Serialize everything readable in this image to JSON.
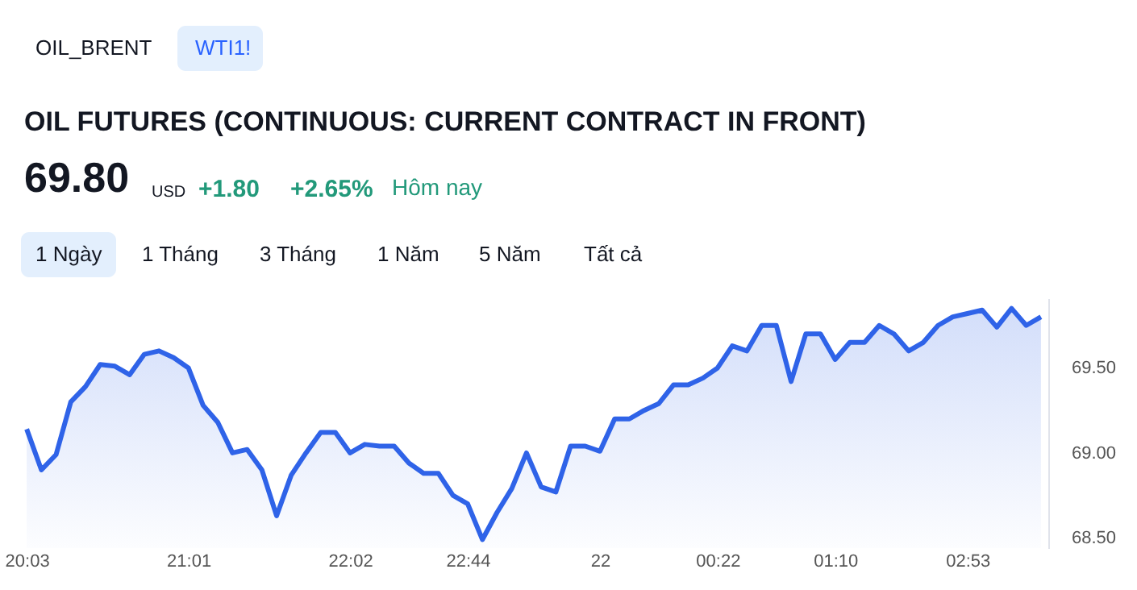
{
  "chart_data": {
    "type": "area",
    "title": "OIL FUTURES (CONTINUOUS: CURRENT CONTRACT IN FRONT)",
    "annotations": [
      "OIL_BRENT",
      "WTI1!",
      "69.80",
      "USD",
      "+1.80",
      "+2.65%",
      "Hôm nay",
      "1 Ngày",
      "1 Tháng",
      "3 Tháng",
      "1 Năm",
      "5 Năm",
      "Tất cả"
    ],
    "categories": [
      "20:03",
      null,
      null,
      null,
      null,
      null,
      null,
      null,
      null,
      null,
      null,
      "21:01",
      null,
      null,
      null,
      null,
      null,
      null,
      null,
      null,
      null,
      null,
      "22:02",
      null,
      null,
      null,
      null,
      null,
      null,
      null,
      "22:44",
      null,
      null,
      null,
      null,
      null,
      null,
      null,
      null,
      "22",
      null,
      null,
      null,
      null,
      null,
      null,
      null,
      "00:22",
      null,
      null,
      null,
      null,
      null,
      null,
      null,
      "01:10",
      null,
      null,
      null,
      null,
      null,
      null,
      null,
      null,
      "02:53",
      null,
      null,
      null,
      null,
      null
    ],
    "series": [
      {
        "color": "#2f63e8",
        "values": [
          69.14,
          68.9,
          68.99,
          69.3,
          69.39,
          69.52,
          69.51,
          69.46,
          69.58,
          69.6,
          69.56,
          69.5,
          69.28,
          69.18,
          69.0,
          69.02,
          68.9,
          68.63,
          68.87,
          69.0,
          69.12,
          69.12,
          69.0,
          69.05,
          69.04,
          69.04,
          68.94,
          68.88,
          68.88,
          68.75,
          68.7,
          68.49,
          68.65,
          68.79,
          69.0,
          68.8,
          68.77,
          69.04,
          69.04,
          69.01,
          69.2,
          69.2,
          69.25,
          69.29,
          69.4,
          69.4,
          69.44,
          69.5,
          69.63,
          69.6,
          69.75,
          69.75,
          69.42,
          69.7,
          69.7,
          69.55,
          69.65,
          69.65,
          69.75,
          69.7,
          69.6,
          69.65,
          69.75,
          69.8,
          69.82,
          69.84,
          69.74,
          69.85,
          69.75,
          69.8
        ]
      }
    ],
    "ylim": [
      68.44,
      69.91
    ],
    "yticks": [
      {
        "value": 68.5,
        "label": "68.50"
      },
      {
        "value": 69.0,
        "label": "69.00"
      },
      {
        "value": 69.5,
        "label": "69.50"
      }
    ],
    "grid": false,
    "line_style": "solid",
    "marker": "none"
  }
}
